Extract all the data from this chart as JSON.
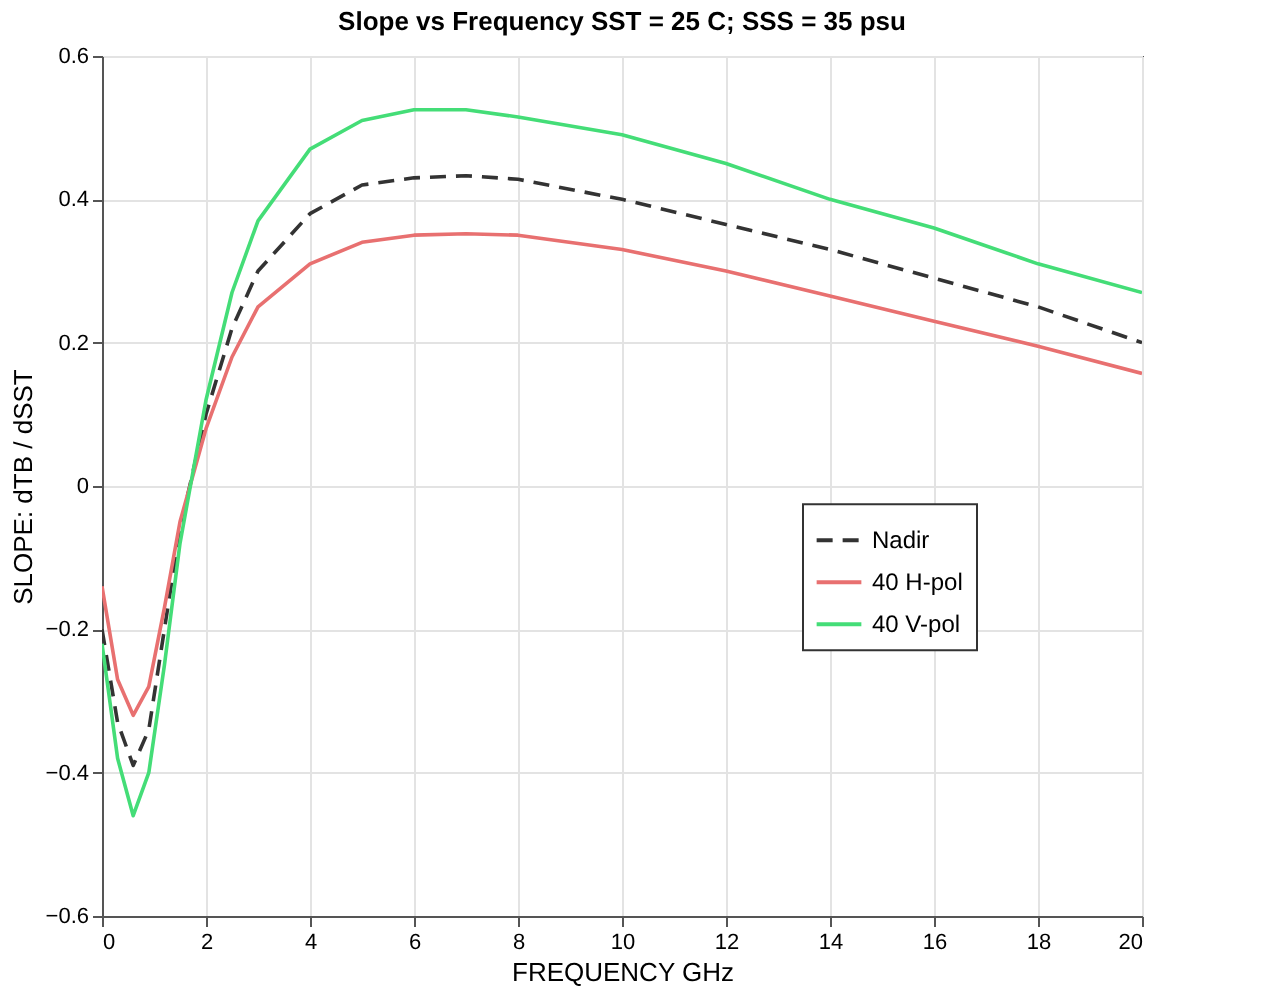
{
  "chart_data": {
    "type": "line",
    "title": "Slope vs Frequency   SST =  25 C;   SSS = 35  psu",
    "xlabel": "FREQUENCY   GHz",
    "ylabel": "SLOPE:  dTB / dSST",
    "x": [
      0,
      0.3,
      0.6,
      0.9,
      1.2,
      1.5,
      2,
      2.5,
      3,
      4,
      5,
      6,
      7,
      8,
      10,
      12,
      14,
      16,
      18,
      20
    ],
    "series": [
      {
        "name": "Nadir",
        "color": "#333333",
        "line_style": "dashed",
        "values": [
          -0.2,
          -0.33,
          -0.39,
          -0.34,
          -0.2,
          -0.06,
          0.1,
          0.22,
          0.3,
          0.38,
          0.42,
          0.43,
          0.433,
          0.428,
          0.4,
          0.365,
          0.33,
          0.29,
          0.25,
          0.2
        ]
      },
      {
        "name": "40 H-pol",
        "color": "#e87070",
        "line_style": "solid",
        "values": [
          -0.14,
          -0.27,
          -0.32,
          -0.28,
          -0.17,
          -0.05,
          0.08,
          0.18,
          0.25,
          0.31,
          0.34,
          0.35,
          0.352,
          0.35,
          0.33,
          0.3,
          0.265,
          0.23,
          0.195,
          0.157
        ]
      },
      {
        "name": "40 V-pol",
        "color": "#44dd77",
        "line_style": "solid",
        "values": [
          -0.22,
          -0.38,
          -0.46,
          -0.4,
          -0.25,
          -0.08,
          0.12,
          0.27,
          0.37,
          0.47,
          0.51,
          0.525,
          0.525,
          0.515,
          0.49,
          0.45,
          0.4,
          0.36,
          0.31,
          0.27
        ]
      }
    ],
    "xlim": [
      0,
      20
    ],
    "xticks": [
      0,
      2,
      4,
      6,
      8,
      10,
      12,
      14,
      16,
      18,
      20
    ],
    "ylim": [
      -0.6,
      0.6
    ],
    "yticks": [
      -0.6,
      -0.4,
      -0.2,
      0,
      0.2,
      0.4,
      0.6
    ],
    "grid": true,
    "legend": "right",
    "marker": "none"
  }
}
